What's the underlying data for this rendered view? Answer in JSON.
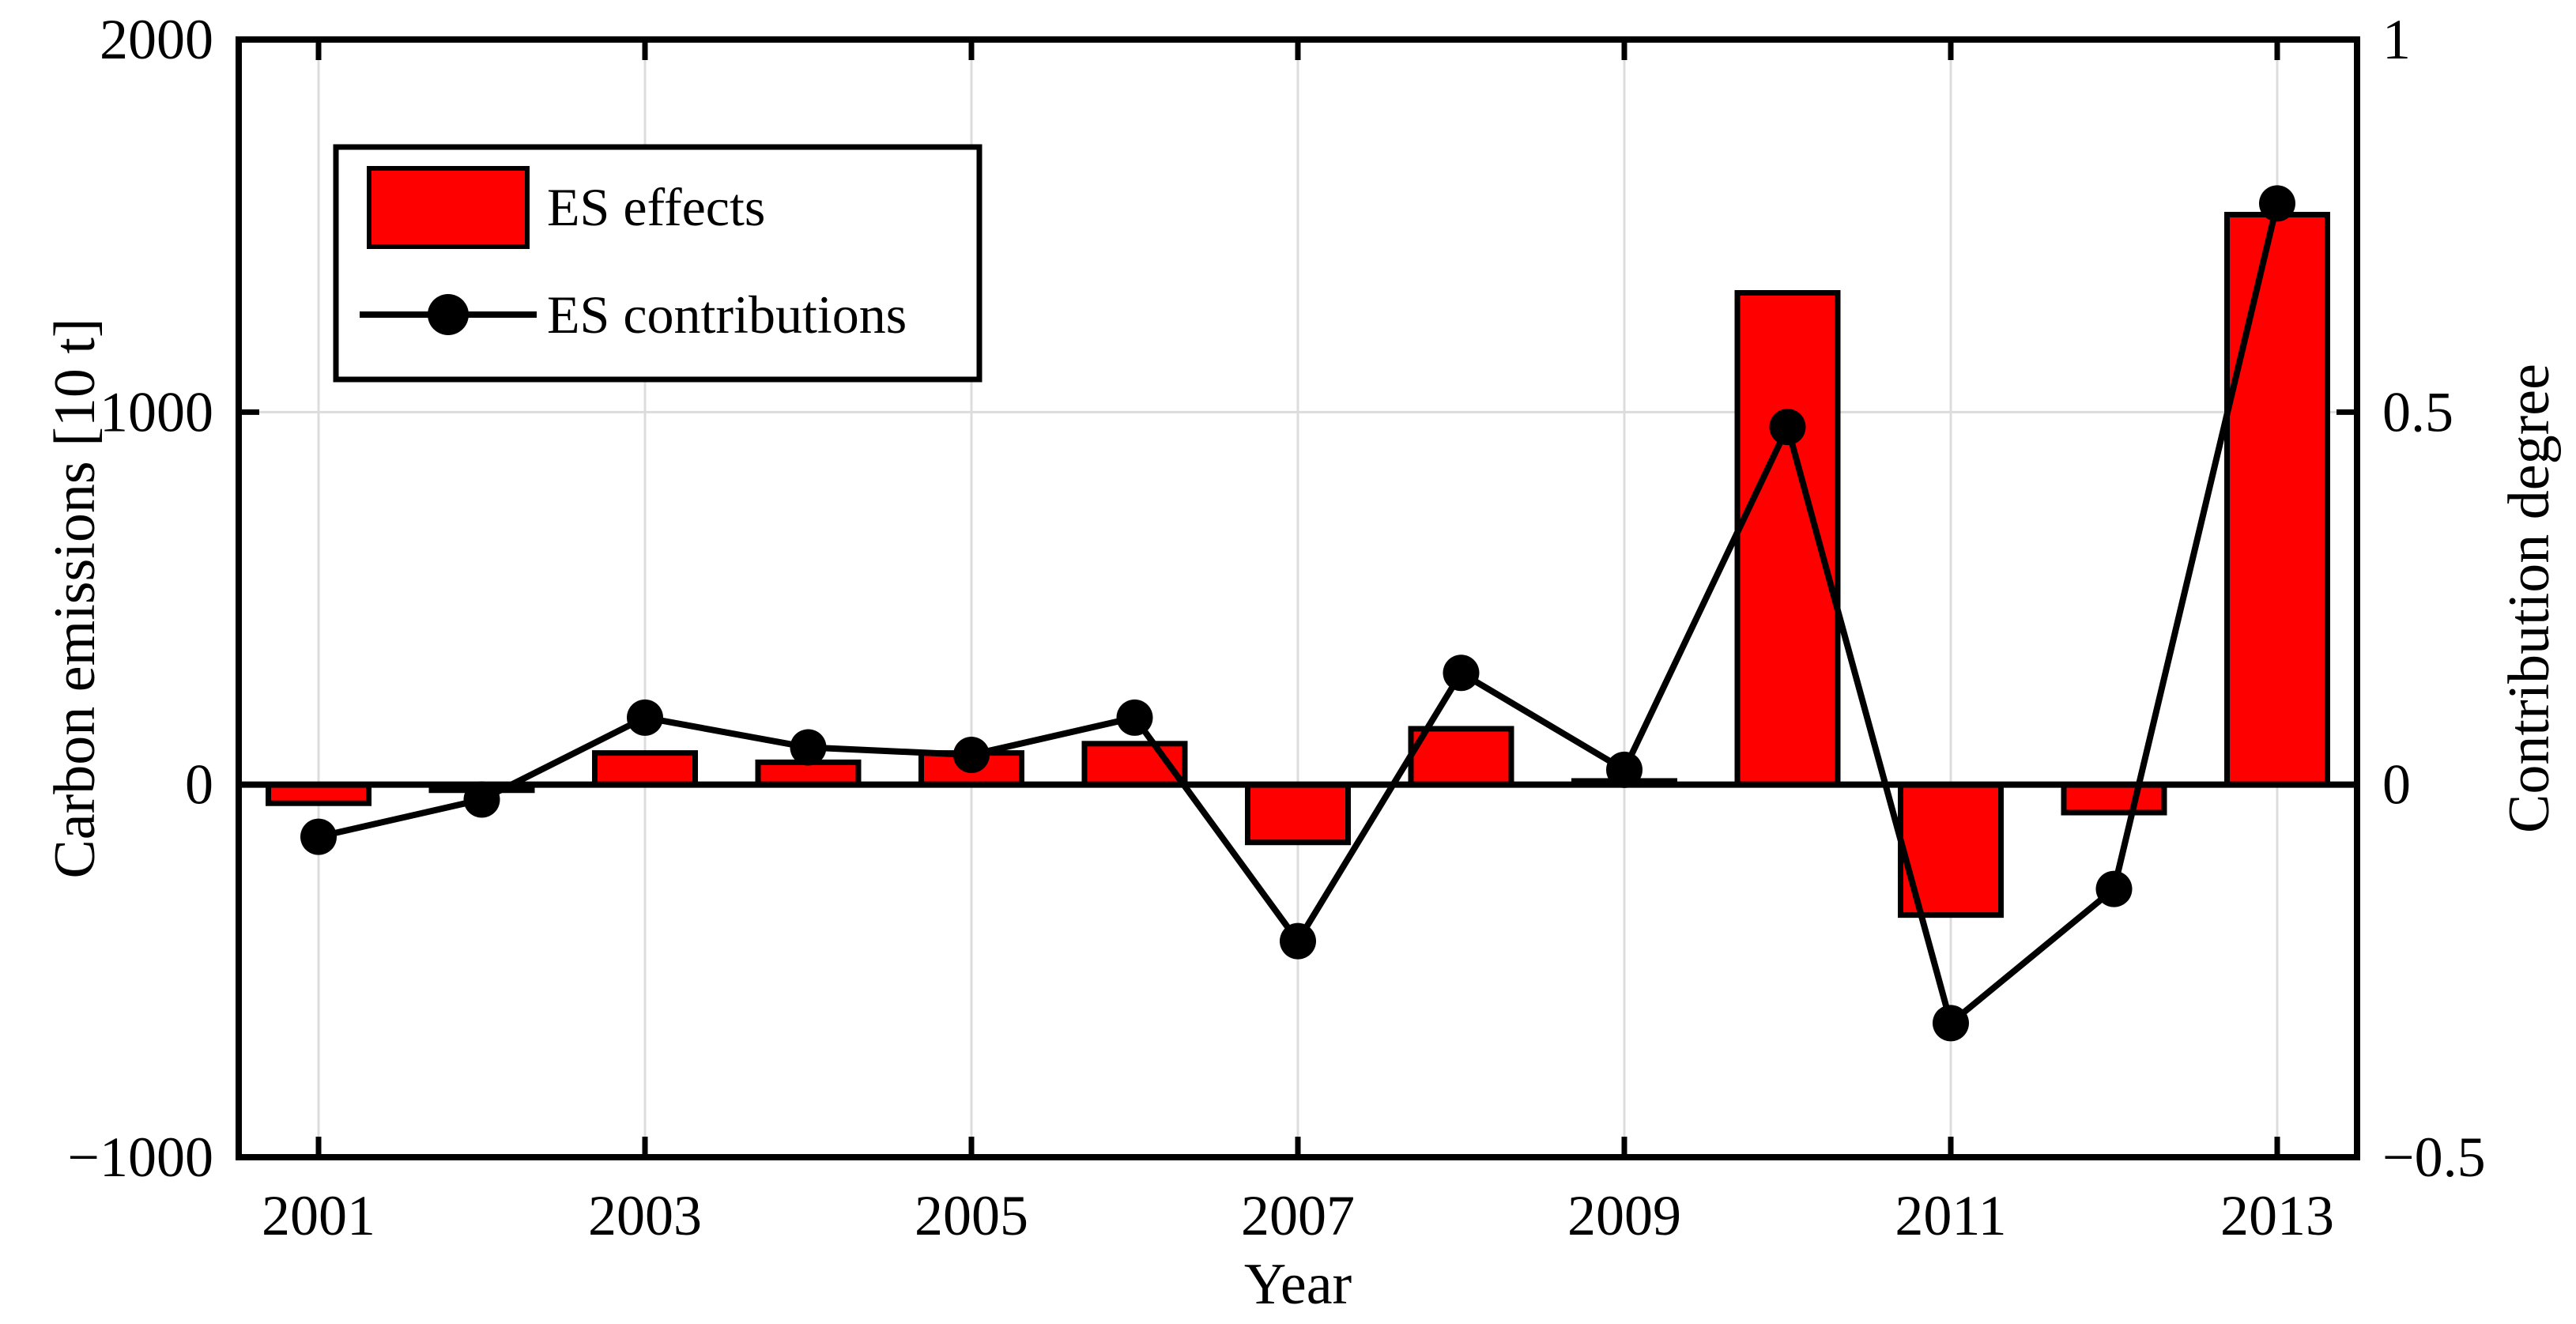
{
  "figure": {
    "background": "#ffffff",
    "frame_color": "#000000",
    "grid_color": "#dcdcdc",
    "zero_line_color": "#000000"
  },
  "legend": {
    "items": [
      {
        "label": "ES effects",
        "type": "bar-swatch",
        "color": "#ff0000"
      },
      {
        "label": "ES contributions",
        "type": "line-marker",
        "color": "#000000"
      }
    ]
  },
  "chart_data": {
    "type": "combo-bar-line",
    "categories": [
      2001,
      2002,
      2003,
      2004,
      2005,
      2006,
      2007,
      2008,
      2009,
      2010,
      2011,
      2012,
      2013
    ],
    "series": [
      {
        "name": "ES effects",
        "type": "bar",
        "axis": "left",
        "color": "#ff0000",
        "edge_color": "#000000",
        "values": [
          -50,
          -15,
          85,
          60,
          85,
          110,
          -155,
          150,
          10,
          1320,
          -350,
          -75,
          1530
        ]
      },
      {
        "name": "ES contributions",
        "type": "line",
        "axis": "right",
        "color": "#000000",
        "marker": "filled-circle",
        "values": [
          -0.07,
          -0.02,
          0.09,
          0.05,
          0.04,
          0.09,
          -0.21,
          0.15,
          0.02,
          0.48,
          -0.32,
          -0.14,
          0.78
        ]
      }
    ],
    "axes": {
      "x": {
        "label": "Year",
        "tick_years": [
          2001,
          2003,
          2005,
          2007,
          2009,
          2011,
          2013
        ]
      },
      "left": {
        "label": "Carbon emissions [10 t]",
        "min": -1000,
        "max": 2000,
        "ticks": [
          2000,
          1000,
          0,
          -1000
        ]
      },
      "right": {
        "label": "Contribution degree",
        "min": -0.5,
        "max": 1,
        "ticks": [
          1,
          0.5,
          0,
          -0.5
        ]
      }
    },
    "grid": {
      "visible": true,
      "color": "#dcdcdc"
    },
    "legend_position": "top-left-inside"
  }
}
